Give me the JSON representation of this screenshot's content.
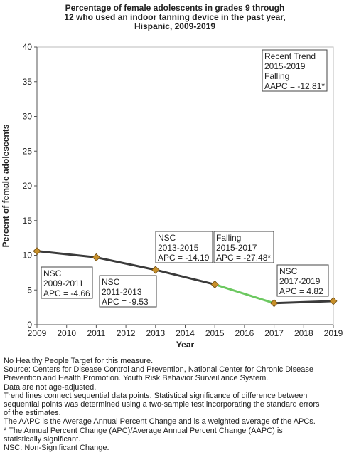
{
  "chart_data": {
    "type": "line",
    "title": [
      "Percentage of female adolescents in grades 9 through",
      "12 who used an indoor tanning device in the past year,",
      "Hispanic,  2009-2019"
    ],
    "xlabel": "Year",
    "ylabel": "Percent of female adolescents",
    "xlim": [
      2009,
      2019
    ],
    "ylim": [
      0,
      40
    ],
    "x_ticks": [
      "2009",
      "2010",
      "2011",
      "2012",
      "2013",
      "2014",
      "2015",
      "2016",
      "2017",
      "2018",
      "2019"
    ],
    "y_ticks": [
      "0",
      "5",
      "10",
      "15",
      "20",
      "25",
      "30",
      "35",
      "40"
    ],
    "points": [
      {
        "x": 2009,
        "y": 10.6
      },
      {
        "x": 2011,
        "y": 9.7
      },
      {
        "x": 2013,
        "y": 7.9
      },
      {
        "x": 2015,
        "y": 5.8
      },
      {
        "x": 2017,
        "y": 3.1
      },
      {
        "x": 2019,
        "y": 3.4
      }
    ],
    "segments": [
      {
        "from": 2009,
        "to": 2011,
        "color": "#3a3a3a"
      },
      {
        "from": 2011,
        "to": 2013,
        "color": "#3a3a3a"
      },
      {
        "from": 2013,
        "to": 2015,
        "color": "#3a3a3a"
      },
      {
        "from": 2015,
        "to": 2017,
        "color": "#6cc860"
      },
      {
        "from": 2017,
        "to": 2019,
        "color": "#3a3a3a"
      }
    ],
    "marker_color": "#c8902a",
    "annotations": [
      {
        "lines": [
          "Recent Trend",
          "2015-2019",
          "Falling",
          "AAPC = -12.81*"
        ]
      },
      {
        "lines": [
          "NSC",
          "2009-2011",
          "APC = -4.66"
        ]
      },
      {
        "lines": [
          "NSC",
          "2011-2013",
          "APC = -9.53"
        ]
      },
      {
        "lines": [
          "NSC",
          "2013-2015",
          "APC = -14.19"
        ]
      },
      {
        "lines": [
          "Falling",
          "2015-2017",
          "APC = -27.48*"
        ]
      },
      {
        "lines": [
          "NSC",
          "2017-2019",
          "APC =  4.82"
        ]
      }
    ],
    "grid": false
  },
  "notes": [
    "No Healthy People Target for this measure.",
    "Source: Centers for Disease Control and Prevention, National Center for Chronic Disease",
    "Prevention and Health Promotion. Youth Risk Behavior Surveillance System.",
    "Data are not age-adjusted.",
    "Trend lines connect sequential data points. Statistical significance of difference between",
    "sequential points was determined using a two-sample test incorporating the standard errors",
    "of the estimates.",
    "The AAPC is the Average Annual Percent Change and is a weighted average of the APCs.",
    "* The Annual Percent Change (APC)/Average Annual Percent Change (AAPC) is",
    "statistically significant.",
    "NSC: Non-Significant Change."
  ]
}
